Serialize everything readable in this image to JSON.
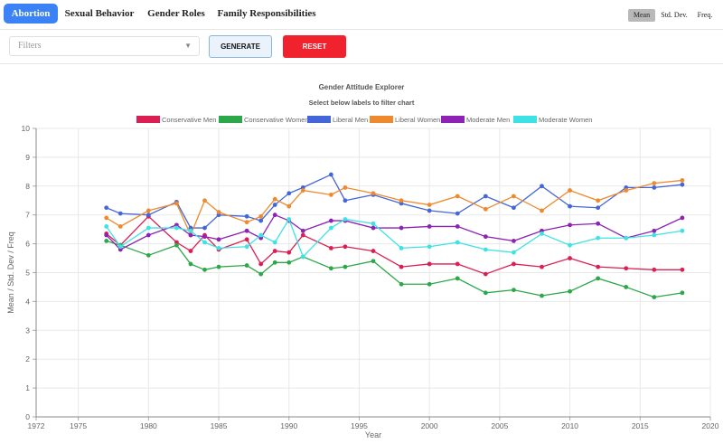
{
  "nav": {
    "tabs": [
      {
        "label": "Abortion",
        "active": true
      },
      {
        "label": "Sexual Behavior",
        "active": false
      },
      {
        "label": "Gender Roles",
        "active": false
      },
      {
        "label": "Family Responsibilities",
        "active": false
      }
    ],
    "stats": [
      {
        "label": "Mean",
        "active": true
      },
      {
        "label": "Std. Dev.",
        "active": false
      },
      {
        "label": "Freq.",
        "active": false
      }
    ]
  },
  "toolbar": {
    "filters_placeholder": "Filters",
    "generate_label": "GENERATE",
    "reset_label": "RESET"
  },
  "colors": {
    "tab_active": "#3b82f6",
    "reset": "#f0222e",
    "grid": "#e8e8e8"
  },
  "chart_data": {
    "type": "line",
    "title": "Gender Attitude Explorer",
    "subtitle": "Select below labels to filter chart",
    "xlabel": "Year",
    "ylabel": "Mean / Std. Dev / Freq",
    "xlim": [
      1972,
      2020
    ],
    "ylim": [
      0,
      10
    ],
    "xticks": [
      1972,
      1975,
      1980,
      1985,
      1990,
      1995,
      2000,
      2005,
      2010,
      2015,
      2020
    ],
    "yticks": [
      0,
      1,
      2,
      3,
      4,
      5,
      6,
      7,
      8,
      9,
      10
    ],
    "grid": true,
    "legend_position": "top",
    "x": [
      1977,
      1978,
      1980,
      1982,
      1983,
      1984,
      1985,
      1987,
      1988,
      1989,
      1990,
      1991,
      1993,
      1994,
      1996,
      1998,
      2000,
      2002,
      2004,
      2006,
      2008,
      2010,
      2012,
      2014,
      2016,
      2018
    ],
    "series": [
      {
        "name": "Conservative Men",
        "color": "#dc1f52",
        "values": [
          6.35,
          5.95,
          6.95,
          6.05,
          5.75,
          6.3,
          5.8,
          6.15,
          5.3,
          5.75,
          5.7,
          6.3,
          5.85,
          5.9,
          5.75,
          5.2,
          5.3,
          5.3,
          4.95,
          5.3,
          5.2,
          5.5,
          5.2,
          5.15,
          5.1,
          5.1
        ]
      },
      {
        "name": "Conservative Women",
        "color": "#2ca84a",
        "values": [
          6.1,
          5.95,
          5.6,
          5.95,
          5.3,
          5.1,
          5.2,
          5.25,
          4.95,
          5.35,
          5.35,
          5.55,
          5.15,
          5.2,
          5.4,
          4.6,
          4.6,
          4.8,
          4.3,
          4.4,
          4.2,
          4.35,
          4.8,
          4.5,
          4.15,
          4.3
        ]
      },
      {
        "name": "Liberal Men",
        "color": "#4466d8",
        "values": [
          7.25,
          7.05,
          7.0,
          7.45,
          6.55,
          6.55,
          7.0,
          6.95,
          6.8,
          7.35,
          7.75,
          7.95,
          8.4,
          7.5,
          7.7,
          7.4,
          7.15,
          7.05,
          7.65,
          7.25,
          8.0,
          7.3,
          7.25,
          7.95,
          7.95,
          8.05
        ]
      },
      {
        "name": "Liberal Women",
        "color": "#ee8a2d",
        "values": [
          6.9,
          6.6,
          7.15,
          7.4,
          6.3,
          7.5,
          7.1,
          6.75,
          6.95,
          7.55,
          7.3,
          7.85,
          7.7,
          7.95,
          7.75,
          7.5,
          7.35,
          7.65,
          7.2,
          7.65,
          7.15,
          7.85,
          7.5,
          7.85,
          8.1,
          8.2
        ]
      },
      {
        "name": "Moderate Men",
        "color": "#8e22b4",
        "values": [
          6.3,
          5.8,
          6.3,
          6.65,
          6.3,
          6.25,
          6.15,
          6.45,
          6.2,
          7.0,
          6.8,
          6.45,
          6.8,
          6.8,
          6.55,
          6.55,
          6.6,
          6.6,
          6.25,
          6.1,
          6.45,
          6.65,
          6.7,
          6.2,
          6.45,
          6.9
        ]
      },
      {
        "name": "Moderate Women",
        "color": "#3ee2e4",
        "values": [
          6.6,
          5.9,
          6.55,
          6.55,
          6.45,
          6.05,
          5.85,
          5.9,
          6.3,
          6.05,
          6.85,
          5.55,
          6.55,
          6.85,
          6.7,
          5.85,
          5.9,
          6.05,
          5.8,
          5.7,
          6.35,
          5.95,
          6.2,
          6.2,
          6.3,
          6.45
        ]
      }
    ]
  }
}
